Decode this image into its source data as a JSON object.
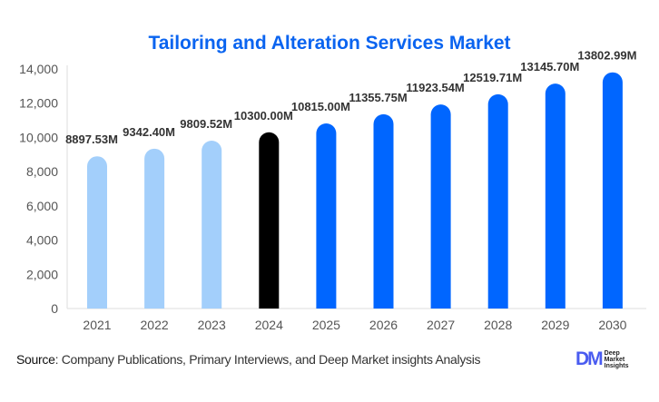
{
  "chart_data": {
    "type": "bar",
    "title": "Tailoring and Alteration Services Market",
    "categories": [
      "2021",
      "2022",
      "2023",
      "2024",
      "2025",
      "2026",
      "2027",
      "2028",
      "2029",
      "2030"
    ],
    "values": [
      8897.53,
      9342.4,
      9809.52,
      10300.0,
      10815.0,
      11355.75,
      11923.54,
      12519.71,
      13145.7,
      13802.99
    ],
    "data_labels": [
      "8897.53M",
      "9342.40M",
      "9809.52M",
      "10300.00M",
      "10815.00M",
      "11355.75M",
      "11923.54M",
      "12519.71M",
      "13145.70M",
      "13802.99M"
    ],
    "bar_colors": [
      "#a3cffb",
      "#a3cffb",
      "#a3cffb",
      "#000000",
      "#0066ff",
      "#0066ff",
      "#0066ff",
      "#0066ff",
      "#0066ff",
      "#0066ff"
    ],
    "ylim": [
      0,
      14000
    ],
    "yticks": [
      0,
      2000,
      4000,
      6000,
      8000,
      10000,
      12000,
      14000
    ],
    "ytick_labels": [
      "0",
      "2,000",
      "4,000",
      "6,000",
      "8,000",
      "10,000",
      "12,000",
      "14,000"
    ],
    "xlabel": "",
    "ylabel": "",
    "grid": false,
    "legend": "none",
    "title_color": "#0a64f0"
  },
  "footer": {
    "source_label": "Source",
    "source_text": ": Company Publications, Primary Interviews, and Deep Market insights Analysis",
    "logo_mark": "DM",
    "logo_text": [
      "Deep",
      "Market",
      "Insights"
    ]
  }
}
